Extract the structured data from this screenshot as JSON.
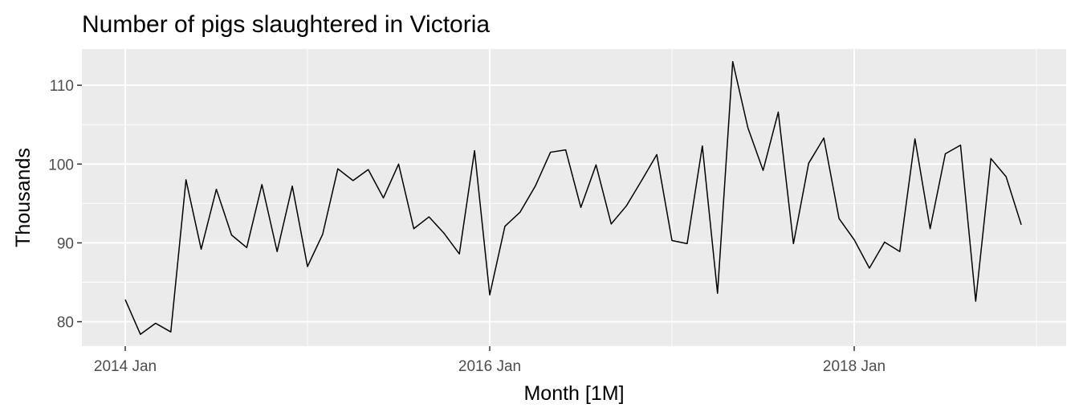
{
  "chart_data": {
    "type": "line",
    "title": "Number of pigs slaughtered in Victoria",
    "xlabel": "Month [1M]",
    "ylabel": "Thousands",
    "x_start": "2014 Jan",
    "x_ticks": [
      {
        "label": "2014 Jan",
        "month_index": 0
      },
      {
        "label": "2016 Jan",
        "month_index": 24
      },
      {
        "label": "2018 Jan",
        "month_index": 48
      }
    ],
    "y_ticks": [
      80,
      90,
      100,
      110
    ],
    "ylim": [
      76.9,
      114.6
    ],
    "xlim": [
      "2013 Dec",
      "2019 Jan"
    ],
    "grid": true,
    "line_color": "#000000",
    "panel_background": "#ebebeb",
    "grid_color": "#ffffff",
    "series": [
      {
        "values": [
          82.8,
          78.4,
          79.8,
          78.7,
          98.0,
          89.2,
          96.8,
          91.0,
          89.4,
          97.4,
          88.9,
          97.2,
          87.0,
          91.1,
          99.4,
          97.9,
          99.3,
          95.7,
          100.0,
          91.8,
          93.3,
          91.2,
          88.6,
          101.7,
          83.4,
          92.1,
          93.9,
          97.2,
          101.5,
          101.8,
          94.5,
          99.9,
          92.4,
          94.7,
          97.9,
          101.2,
          90.3,
          89.9,
          102.3,
          83.6,
          113.0,
          104.6,
          99.2,
          106.6,
          89.9,
          100.1,
          103.3,
          93.1,
          90.4,
          86.8,
          90.1,
          88.9,
          103.2,
          91.8,
          101.3,
          102.4,
          82.6,
          100.7,
          98.4,
          92.3
        ]
      }
    ]
  }
}
